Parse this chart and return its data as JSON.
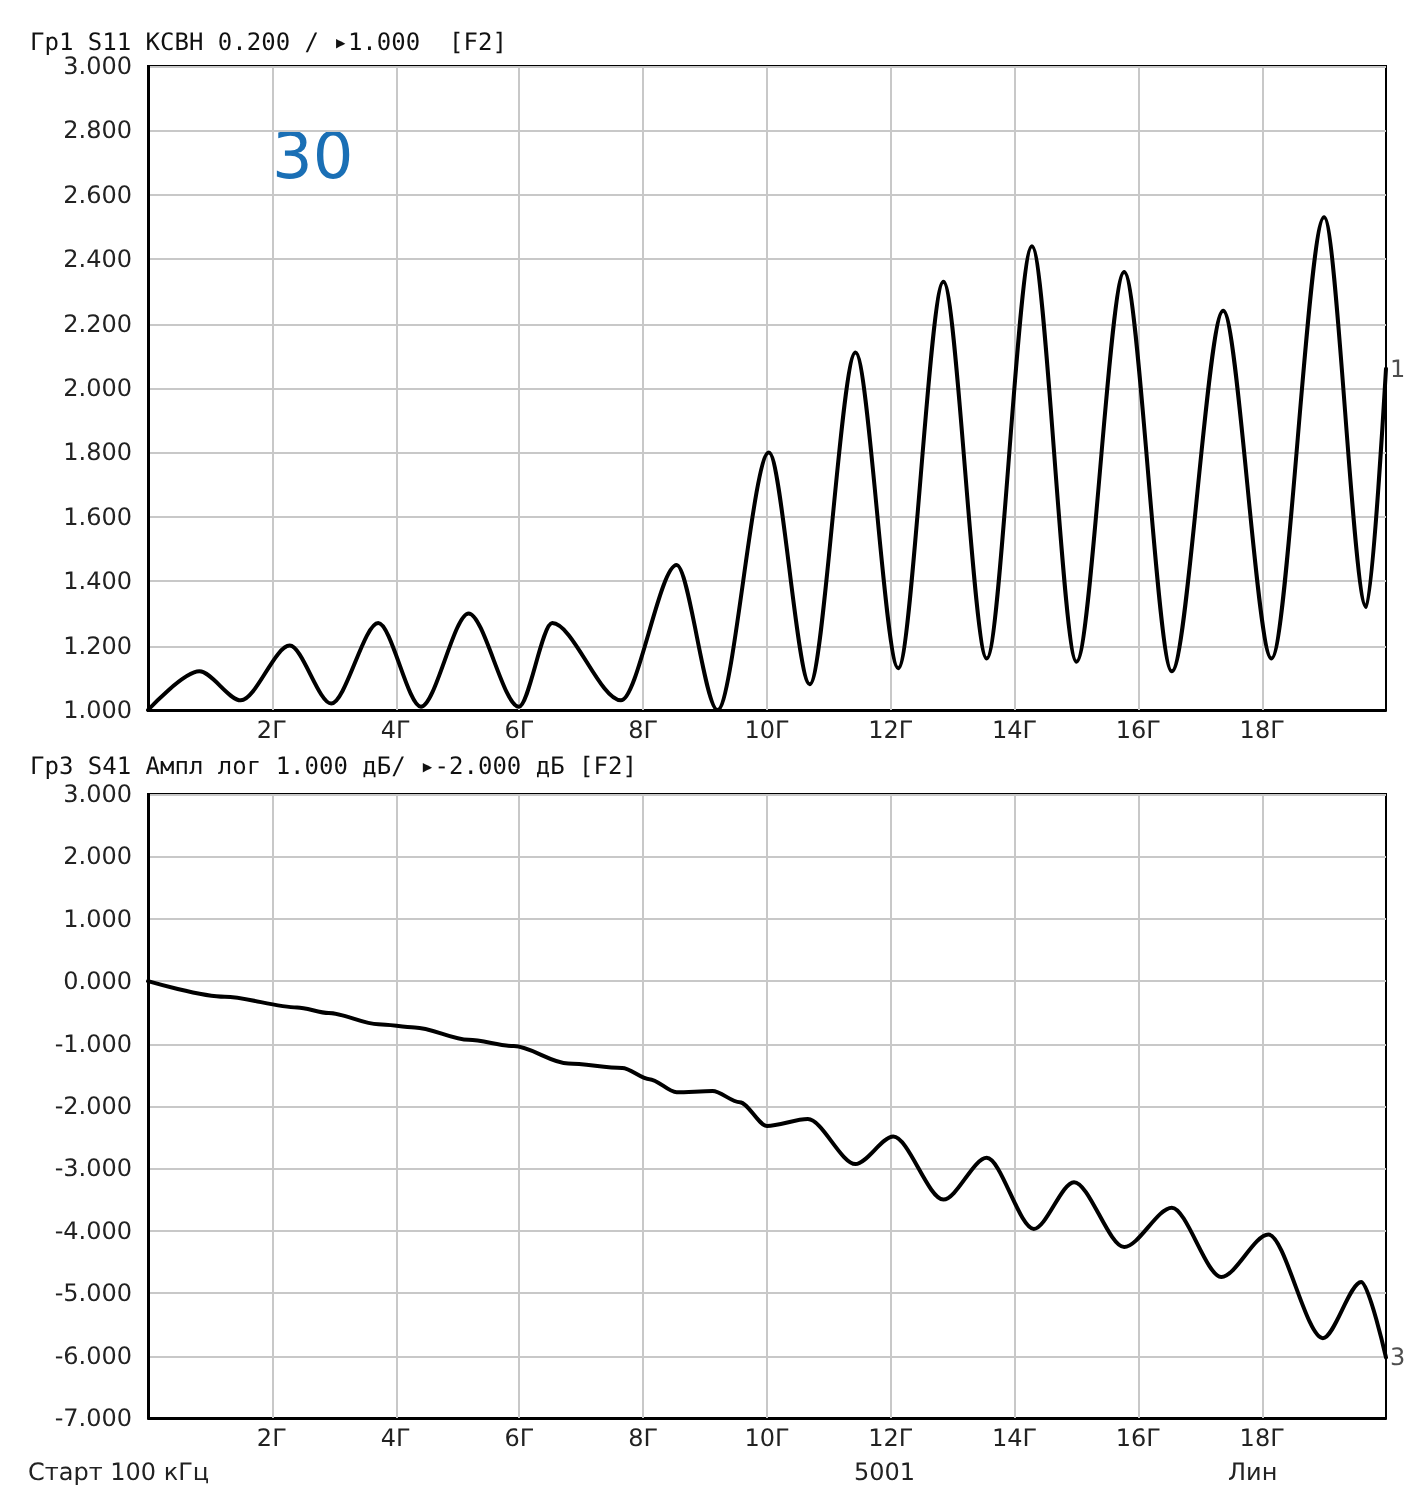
{
  "chart_data": [
    {
      "type": "line",
      "title": "Гр1 S11 КСВН 0.200 / ▸1.000  [F2]",
      "annotations": [
        "30",
        {
          "text": "1",
          "x": 20,
          "y": 2.06
        }
      ],
      "xlim": [
        0.0001,
        20
      ],
      "xticks": [
        {
          "value": 2,
          "label": "2Г"
        },
        {
          "value": 4,
          "label": "4Г"
        },
        {
          "value": 6,
          "label": "6Г"
        },
        {
          "value": 8,
          "label": "8Г"
        },
        {
          "value": 10,
          "label": "10Г"
        },
        {
          "value": 12,
          "label": "12Г"
        },
        {
          "value": 14,
          "label": "14Г"
        },
        {
          "value": 16,
          "label": "16Г"
        },
        {
          "value": 18,
          "label": "18Г"
        }
      ],
      "ylim": [
        1,
        3
      ],
      "yticks": [
        {
          "value": 1,
          "label": "1.000"
        },
        {
          "value": 1.2,
          "label": "1.200"
        },
        {
          "value": 1.4,
          "label": "1.400"
        },
        {
          "value": 1.6,
          "label": "1.600"
        },
        {
          "value": 1.8,
          "label": "1.800"
        },
        {
          "value": 2,
          "label": "2.000"
        },
        {
          "value": 2.2,
          "label": "2.200"
        },
        {
          "value": 2.4,
          "label": "2.400"
        },
        {
          "value": 2.6,
          "label": "2.600"
        },
        {
          "value": 2.8,
          "label": "2.800"
        },
        {
          "value": 3,
          "label": "3.000"
        }
      ],
      "grid": true,
      "marker": "none",
      "line_style": "solid",
      "series": [
        {
          "color": "#000000",
          "x": [
            0.0001,
            0.83,
            1.5,
            2.29,
            2.96,
            3.72,
            4.41,
            5.18,
            5.99,
            6.53,
            7.64,
            8.54,
            9.2,
            10.03,
            10.69,
            11.43,
            12.12,
            12.85,
            13.55,
            14.28,
            15.0,
            15.77,
            16.54,
            17.37,
            18.15,
            19.0,
            19.68,
            20
          ],
          "values": [
            1.0,
            1.12,
            1.03,
            1.2,
            1.02,
            1.27,
            1.01,
            1.3,
            1.01,
            1.27,
            1.03,
            1.45,
            1.0,
            1.8,
            1.08,
            2.11,
            1.13,
            2.33,
            1.16,
            2.44,
            1.15,
            2.36,
            1.12,
            2.24,
            1.16,
            2.53,
            1.32,
            2.06
          ]
        }
      ]
    },
    {
      "type": "line",
      "title": "Гр3 S41 Ампл лог 1.000 дБ/ ▸-2.000 дБ [F2]",
      "annotations": [
        "Старт 100 кГц",
        "5001",
        "Лин",
        {
          "text": "3",
          "x": 20,
          "y": -6.03
        }
      ],
      "xlim": [
        0.0001,
        20
      ],
      "xticks": [
        {
          "value": 2,
          "label": "2Г"
        },
        {
          "value": 4,
          "label": "4Г"
        },
        {
          "value": 6,
          "label": "6Г"
        },
        {
          "value": 8,
          "label": "8Г"
        },
        {
          "value": 10,
          "label": "10Г"
        },
        {
          "value": 12,
          "label": "12Г"
        },
        {
          "value": 14,
          "label": "14Г"
        },
        {
          "value": 16,
          "label": "16Г"
        },
        {
          "value": 18,
          "label": "18Г"
        }
      ],
      "ylim": [
        -7,
        3
      ],
      "yticks": [
        {
          "value": -7,
          "label": "-7.000"
        },
        {
          "value": -6,
          "label": "-6.000"
        },
        {
          "value": -5,
          "label": "-5.000"
        },
        {
          "value": -4,
          "label": "-4.000"
        },
        {
          "value": -3,
          "label": "-3.000"
        },
        {
          "value": -2,
          "label": "-2.000"
        },
        {
          "value": -1,
          "label": "-1.000"
        },
        {
          "value": 0,
          "label": "0.000"
        },
        {
          "value": 1,
          "label": "1.000"
        },
        {
          "value": 2,
          "label": "2.000"
        },
        {
          "value": 3,
          "label": "3.000"
        }
      ],
      "grid": true,
      "marker": "none",
      "line_style": "solid",
      "series": [
        {
          "color": "#000000",
          "x": [
            0.0001,
            1.24,
            2.41,
            2.92,
            3.72,
            4.31,
            5.18,
            5.91,
            6.79,
            7.66,
            8.1,
            8.54,
            9.12,
            9.56,
            10.0,
            10.66,
            11.43,
            12.04,
            12.85,
            13.55,
            14.31,
            14.96,
            15.77,
            16.54,
            17.34,
            18.1,
            18.98,
            19.6,
            20
          ],
          "values": [
            0,
            -0.25,
            -0.42,
            -0.51,
            -0.69,
            -0.74,
            -0.94,
            -1.04,
            -1.32,
            -1.39,
            -1.57,
            -1.78,
            -1.76,
            -1.94,
            -2.32,
            -2.21,
            -2.93,
            -2.49,
            -3.5,
            -2.83,
            -3.97,
            -3.22,
            -4.26,
            -3.63,
            -4.74,
            -4.06,
            -5.72,
            -4.82,
            -6.03
          ]
        }
      ]
    }
  ]
}
